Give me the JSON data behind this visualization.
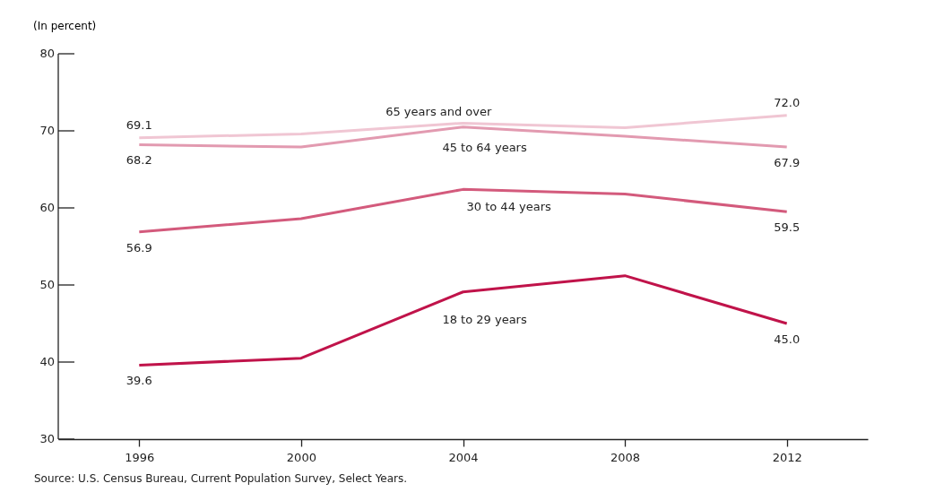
{
  "chart_data": {
    "type": "line",
    "ylabel": "(In percent)",
    "categories": [
      "1996",
      "2000",
      "2004",
      "2008",
      "2012"
    ],
    "series": [
      {
        "name": "65 years and over",
        "color": "#f0c6d3",
        "values": [
          69.1,
          69.6,
          71.0,
          70.4,
          72.0
        ],
        "value_labels": [
          "69.1",
          null,
          null,
          null,
          "72.0"
        ]
      },
      {
        "name": "45 to 64 years",
        "color": "#e29ab0",
        "values": [
          68.2,
          67.9,
          70.5,
          69.3,
          67.9
        ],
        "value_labels": [
          "68.2",
          null,
          null,
          null,
          "67.9"
        ]
      },
      {
        "name": "30 to 44 years",
        "color": "#d35a7c",
        "values": [
          56.9,
          58.6,
          62.4,
          61.8,
          59.5
        ],
        "value_labels": [
          "56.9",
          null,
          null,
          null,
          "59.5"
        ]
      },
      {
        "name": "18 to 29 years",
        "color": "#c0134a",
        "values": [
          39.6,
          40.5,
          49.1,
          51.2,
          45.0
        ],
        "value_labels": [
          "39.6",
          null,
          null,
          null,
          "45.0"
        ]
      }
    ],
    "ylim": [
      30,
      80
    ],
    "yticks": [
      30,
      40,
      50,
      60,
      70,
      80
    ],
    "grid": false,
    "legend": false,
    "annotations": [
      "Source: U.S. Census Bureau, Current Population Survey, Select Years."
    ]
  }
}
